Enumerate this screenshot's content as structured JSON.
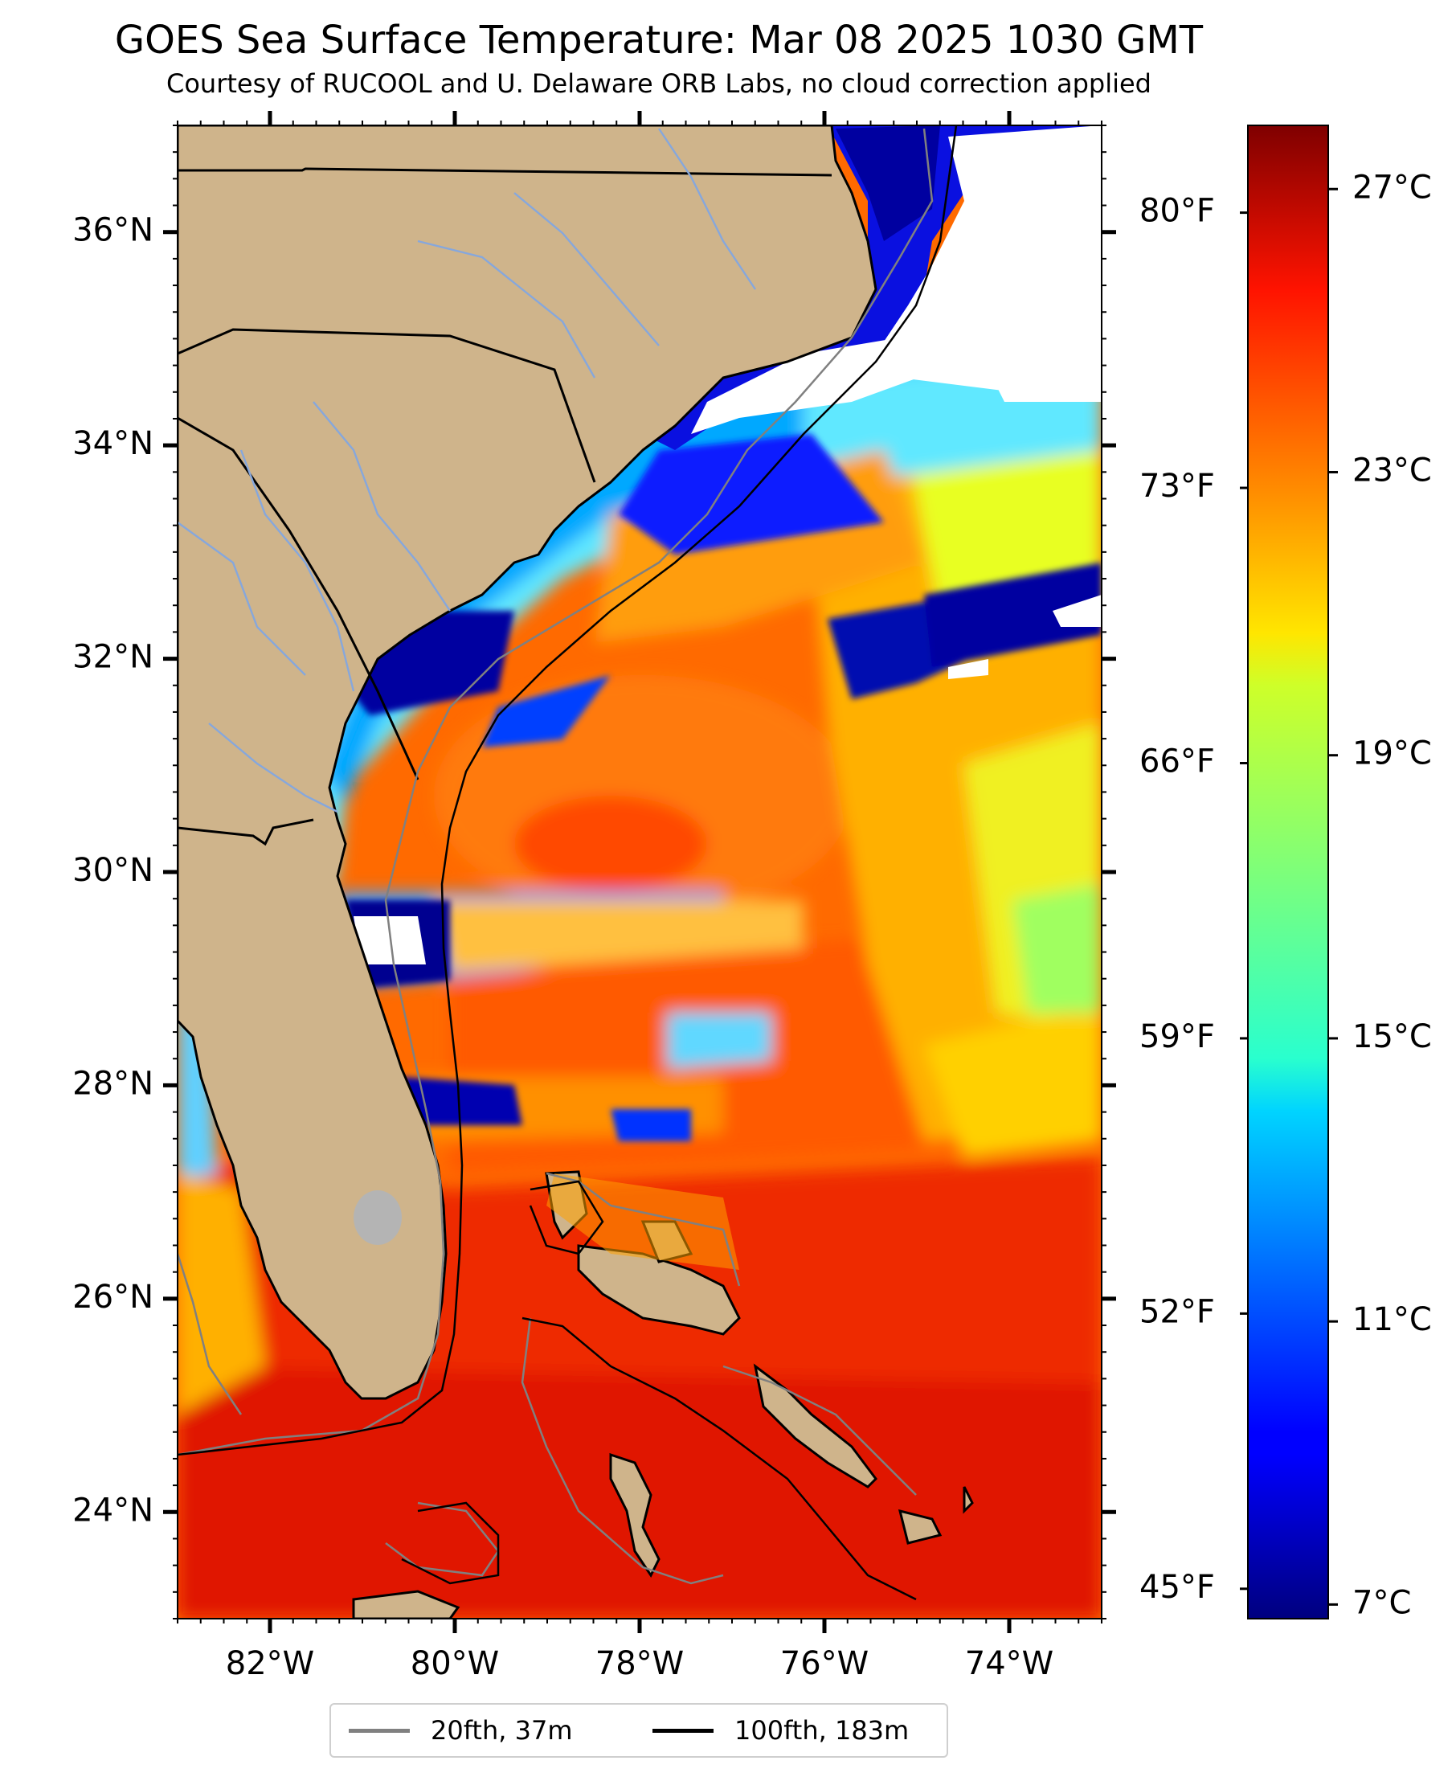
{
  "title": "GOES Sea Surface Temperature: Mar 08 2025 1030 GMT",
  "subtitle": "Courtesy of RUCOOL and U. Delaware ORB Labs, no cloud correction applied",
  "map": {
    "lon_range": [
      -83.0,
      -73.0
    ],
    "lat_range": [
      23.0,
      37.0
    ],
    "lat_ticks": [
      "36°N",
      "34°N",
      "32°N",
      "30°N",
      "28°N",
      "26°N",
      "24°N"
    ],
    "lon_ticks": [
      "82°W",
      "80°W",
      "78°W",
      "76°W",
      "74°W"
    ],
    "fahrenheit_ticks": [
      "80°F",
      "73°F",
      "66°F",
      "59°F",
      "52°F",
      "45°F"
    ],
    "land_color": "#cfb48b",
    "cloud_color": "#ffffff"
  },
  "colorbar": {
    "colormap": "jet",
    "range_c": [
      6.8,
      27.9
    ],
    "ticks": [
      "27°C",
      "23°C",
      "19°C",
      "15°C",
      "11°C",
      "7°C"
    ]
  },
  "legend": {
    "items": [
      {
        "label": "20fth, 37m",
        "color": "#808080"
      },
      {
        "label": "100fth, 183m",
        "color": "#000000"
      }
    ]
  }
}
